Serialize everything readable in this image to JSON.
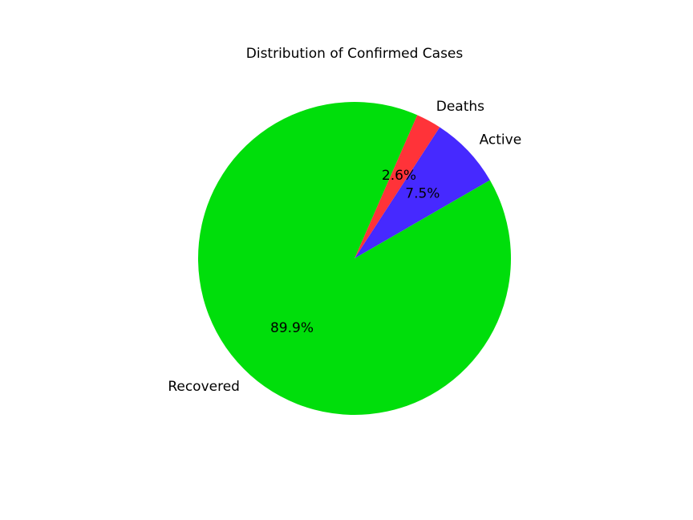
{
  "chart_data": {
    "type": "pie",
    "title": "Distribution of Confirmed Cases",
    "slices": [
      {
        "label": "Active",
        "value": 7.5,
        "pct_text": "7.5%",
        "color": "#4629ff"
      },
      {
        "label": "Deaths",
        "value": 2.6,
        "pct_text": "2.6%",
        "color": "#ff3339"
      },
      {
        "label": "Recovered",
        "value": 89.9,
        "pct_text": "89.9%",
        "color": "#00de0b"
      }
    ],
    "start_angle_deg": 30,
    "direction": "counterclockwise",
    "legend": "none"
  }
}
